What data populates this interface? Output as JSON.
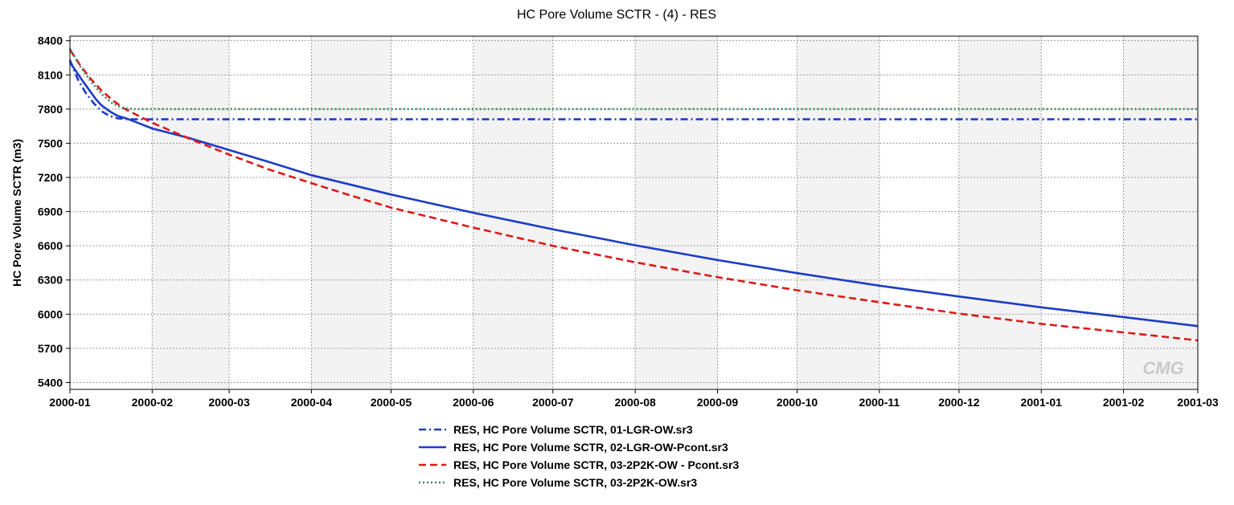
{
  "chart_data": {
    "type": "line",
    "title": "HC Pore Volume SCTR - (4) - RES",
    "xlabel": "",
    "ylabel": "HC Pore Volume SCTR (m3)",
    "x_tick_labels": [
      "2000-01",
      "2000-02",
      "2000-03",
      "2000-04",
      "2000-05",
      "2000-06",
      "2000-07",
      "2000-08",
      "2000-09",
      "2000-10",
      "2000-11",
      "2000-12",
      "2001-01",
      "2001-02",
      "2001-03"
    ],
    "x_tick_days": [
      0,
      31,
      60,
      91,
      121,
      152,
      182,
      213,
      244,
      274,
      305,
      335,
      366,
      397,
      425
    ],
    "y_ticks": [
      5400,
      5700,
      6000,
      6300,
      6600,
      6900,
      7200,
      7500,
      7800,
      8100,
      8400
    ],
    "xlim": [
      "2000-01-01",
      "2001-03-01"
    ],
    "ylim": [
      5340,
      8440
    ],
    "grid": true,
    "legend_position": "bottom",
    "watermark": "CMG",
    "series": [
      {
        "name": "RES, HC Pore Volume SCTR, 01-LGR-OW.sr3",
        "color": "#1c3cc8",
        "dash": "dashdot",
        "points": [
          [
            0,
            8230
          ],
          [
            3,
            8060
          ],
          [
            6,
            7940
          ],
          [
            9,
            7850
          ],
          [
            12,
            7780
          ],
          [
            15,
            7740
          ],
          [
            18,
            7718
          ],
          [
            22,
            7710
          ],
          [
            30,
            7710
          ],
          [
            60,
            7710
          ],
          [
            120,
            7710
          ],
          [
            240,
            7710
          ],
          [
            360,
            7710
          ],
          [
            425,
            7710
          ]
        ]
      },
      {
        "name": "RES, HC Pore Volume SCTR, 02-LGR-OW-Pcont.sr3",
        "color": "#1c3cc8",
        "dash": "solid",
        "points": [
          [
            0,
            8210
          ],
          [
            5,
            8040
          ],
          [
            10,
            7880
          ],
          [
            12,
            7830
          ],
          [
            15,
            7780
          ],
          [
            18,
            7740
          ],
          [
            21,
            7720
          ],
          [
            25,
            7685
          ],
          [
            31,
            7630
          ],
          [
            45,
            7545
          ],
          [
            60,
            7440
          ],
          [
            75,
            7335
          ],
          [
            91,
            7220
          ],
          [
            106,
            7135
          ],
          [
            121,
            7050
          ],
          [
            152,
            6890
          ],
          [
            182,
            6745
          ],
          [
            213,
            6605
          ],
          [
            244,
            6475
          ],
          [
            274,
            6360
          ],
          [
            305,
            6250
          ],
          [
            335,
            6155
          ],
          [
            366,
            6060
          ],
          [
            397,
            5975
          ],
          [
            425,
            5895
          ]
        ]
      },
      {
        "name": "RES, HC Pore Volume SCTR, 03-2P2K-OW - Pcont.sr3",
        "color": "#e01818",
        "dash": "dashed",
        "points": [
          [
            0,
            8320
          ],
          [
            4,
            8180
          ],
          [
            8,
            8060
          ],
          [
            12,
            7960
          ],
          [
            16,
            7880
          ],
          [
            20,
            7810
          ],
          [
            25,
            7750
          ],
          [
            31,
            7680
          ],
          [
            45,
            7540
          ],
          [
            60,
            7400
          ],
          [
            75,
            7270
          ],
          [
            91,
            7150
          ],
          [
            106,
            7040
          ],
          [
            121,
            6935
          ],
          [
            152,
            6760
          ],
          [
            182,
            6600
          ],
          [
            213,
            6455
          ],
          [
            244,
            6325
          ],
          [
            274,
            6210
          ],
          [
            305,
            6105
          ],
          [
            335,
            6005
          ],
          [
            366,
            5915
          ],
          [
            397,
            5840
          ],
          [
            425,
            5770
          ]
        ]
      },
      {
        "name": "RES, HC Pore Volume SCTR, 03-2P2K-OW.sr3",
        "color": "#3c8c64",
        "dash": "dotted",
        "points": [
          [
            0,
            8330
          ],
          [
            4,
            8170
          ],
          [
            8,
            8040
          ],
          [
            12,
            7930
          ],
          [
            16,
            7850
          ],
          [
            20,
            7808
          ],
          [
            24,
            7800
          ],
          [
            30,
            7800
          ],
          [
            60,
            7800
          ],
          [
            120,
            7800
          ],
          [
            240,
            7800
          ],
          [
            360,
            7800
          ],
          [
            425,
            7800
          ]
        ]
      }
    ]
  }
}
